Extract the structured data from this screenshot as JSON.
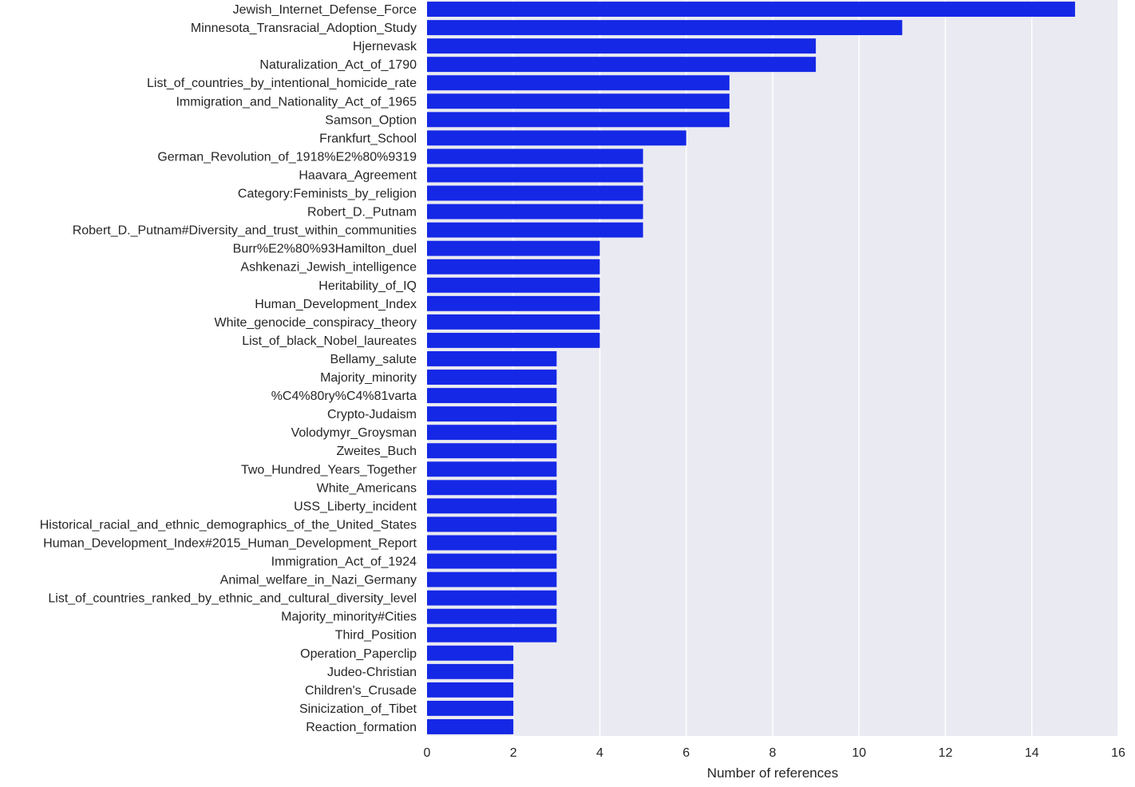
{
  "chart_data": {
    "type": "bar",
    "orientation": "horizontal",
    "title": "",
    "xlabel": "Number of references",
    "ylabel": "",
    "xlim": [
      0,
      16
    ],
    "xticks": [
      "0",
      "2",
      "4",
      "6",
      "8",
      "10",
      "12",
      "14",
      "16"
    ],
    "grid": true,
    "legend": "none",
    "colors": {
      "background": "#eaeaf2",
      "grid": "#ffffff",
      "bar": "#1428e6"
    },
    "categories": [
      "Jewish_Internet_Defense_Force",
      "Minnesota_Transracial_Adoption_Study",
      "Hjernevask",
      "Naturalization_Act_of_1790",
      "List_of_countries_by_intentional_homicide_rate",
      "Immigration_and_Nationality_Act_of_1965",
      "Samson_Option",
      "Frankfurt_School",
      "German_Revolution_of_1918%E2%80%9319",
      "Haavara_Agreement",
      "Category:Feminists_by_religion",
      "Robert_D._Putnam",
      "Robert_D._Putnam#Diversity_and_trust_within_communities",
      "Burr%E2%80%93Hamilton_duel",
      "Ashkenazi_Jewish_intelligence",
      "Heritability_of_IQ",
      "Human_Development_Index",
      "White_genocide_conspiracy_theory",
      "List_of_black_Nobel_laureates",
      "Bellamy_salute",
      "Majority_minority",
      "%C4%80ry%C4%81varta",
      "Crypto-Judaism",
      "Volodymyr_Groysman",
      "Zweites_Buch",
      "Two_Hundred_Years_Together",
      "White_Americans",
      "USS_Liberty_incident",
      "Historical_racial_and_ethnic_demographics_of_the_United_States",
      "Human_Development_Index#2015_Human_Development_Report",
      "Immigration_Act_of_1924",
      "Animal_welfare_in_Nazi_Germany",
      "List_of_countries_ranked_by_ethnic_and_cultural_diversity_level",
      "Majority_minority#Cities",
      "Third_Position",
      "Operation_Paperclip",
      "Judeo-Christian",
      "Children's_Crusade",
      "Sinicization_of_Tibet",
      "Reaction_formation"
    ],
    "values": [
      15,
      11,
      9,
      9,
      7,
      7,
      7,
      6,
      5,
      5,
      5,
      5,
      5,
      4,
      4,
      4,
      4,
      4,
      4,
      3,
      3,
      3,
      3,
      3,
      3,
      3,
      3,
      3,
      3,
      3,
      3,
      3,
      3,
      3,
      3,
      2,
      2,
      2,
      2,
      2
    ]
  }
}
